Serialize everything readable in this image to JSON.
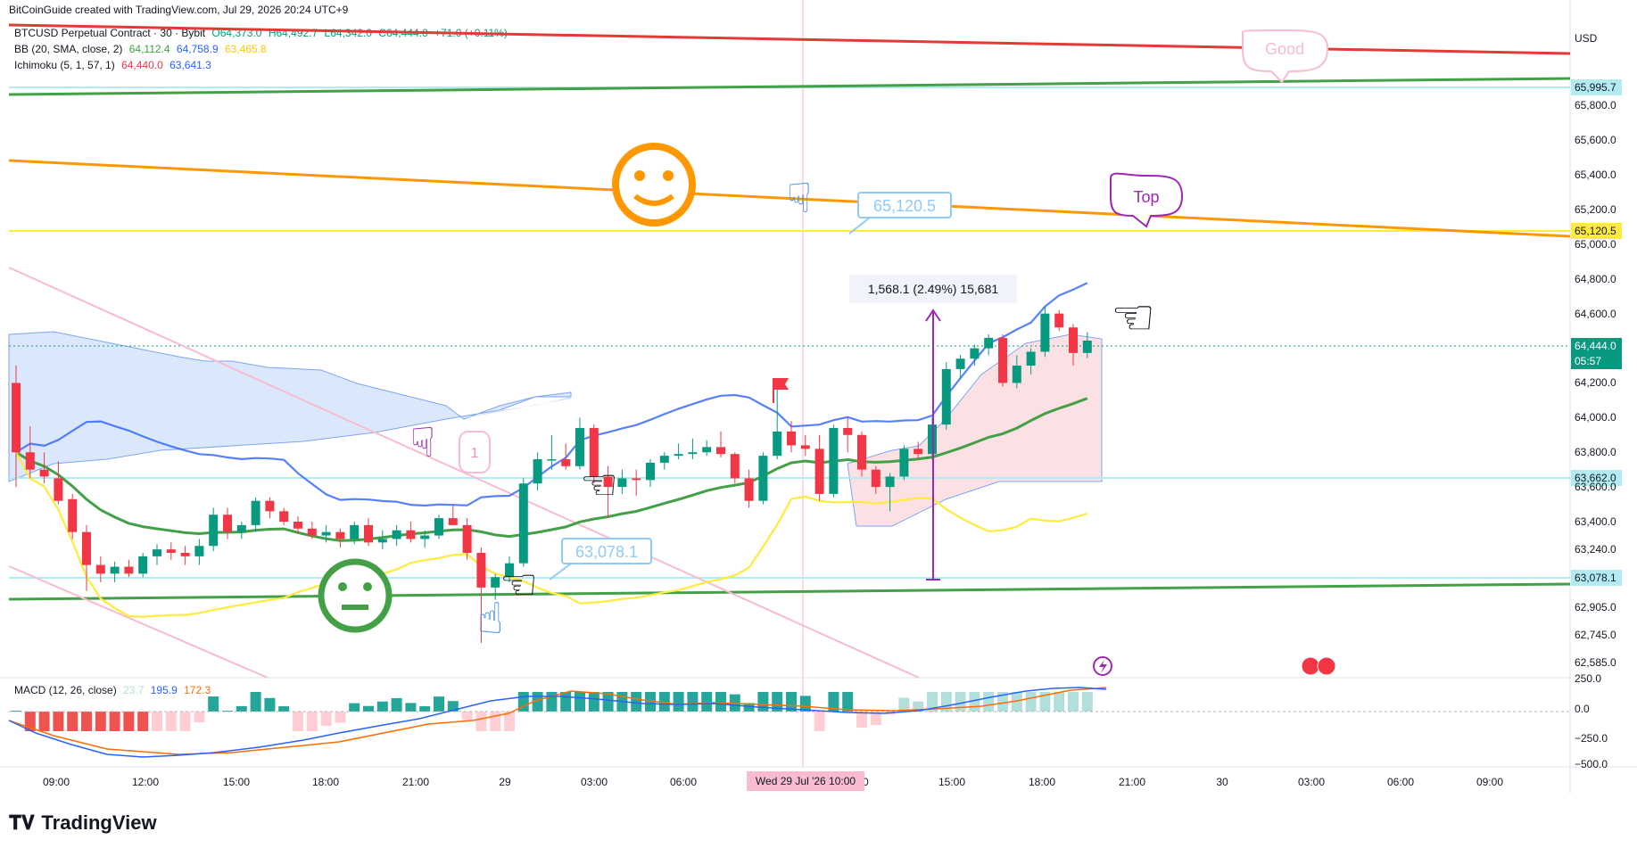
{
  "header": {
    "attribution": "BitCoinGuide created with TradingView.com, Jul 29, 2026 20:24 UTC+9"
  },
  "legend": {
    "symbol": "BTCUSD Perpetual Contract · 30 · Bybit",
    "open": "O64,373.0",
    "high": "H64,492.7",
    "low": "L64,342.0",
    "close": "C64,444.0",
    "change": "+71.0 (+0.11%)",
    "bb_label": "BB (20, SMA, close, 2)",
    "bb_basis": "64,112.4",
    "bb_upper": "64,758.9",
    "bb_lower": "63,465.8",
    "ichimoku_label": "Ichimoku (5, 1, 57, 1)",
    "ichi_a": "64,440.0",
    "ichi_b": "63,641.3",
    "macd_label": "MACD (12, 26, close)",
    "macd_hist": "23.7",
    "macd_line": "195.9",
    "macd_signal": "172.3"
  },
  "currency": "USD",
  "price_tags": {
    "t1": "65,995.7",
    "t2": "65,120.5",
    "last": "64,444.0",
    "countdown": "05:57",
    "t3": "63,662.0",
    "t4": "63,078.1"
  },
  "annotations": {
    "measure": "1,568.1 (2.49%) 15,681",
    "callout_high": "65,120.5",
    "callout_low": "63,078.1",
    "bubble_top": "Top",
    "bubble_good": "Good",
    "tag_one": "1",
    "crosshair_date": "Wed 29 Jul '26   10:00"
  },
  "footer": {
    "brand": "TradingView"
  },
  "colors": {
    "up": "#089981",
    "down": "#f23645",
    "bb": "#2962ff",
    "ma": "#43a047",
    "yellow": "#ffeb3b",
    "orange": "#ff9800",
    "red_line": "#e53935"
  },
  "chart_data": {
    "type": "candlestick",
    "symbol": "BTCUSD Perpetual Contract",
    "interval": "30",
    "exchange": "Bybit",
    "y_axis_ticks": [
      "65,800.0",
      "65,600.0",
      "65,400.0",
      "65,200.0",
      "65,000.0",
      "64,800.0",
      "64,600.0",
      "64,200.0",
      "64,000.0",
      "63,800.0",
      "63,600.0",
      "63,400.0",
      "63,240.0",
      "62,905.0",
      "62,745.0",
      "62,585.0"
    ],
    "macd_axis_ticks": [
      "250.0",
      "0.0",
      "−250.0",
      "−500.0"
    ],
    "x_axis_ticks": [
      "09:00",
      "12:00",
      "15:00",
      "18:00",
      "21:00",
      "29",
      "03:00",
      "06:00",
      "00",
      "15:00",
      "18:00",
      "21:00",
      "30",
      "03:00",
      "06:00",
      "09:00"
    ],
    "candles": [
      {
        "o": 64200,
        "h": 64300,
        "l": 63600,
        "c": 63800
      },
      {
        "o": 63800,
        "h": 63950,
        "l": 63650,
        "c": 63700
      },
      {
        "o": 63700,
        "h": 63800,
        "l": 63620,
        "c": 63660
      },
      {
        "o": 63650,
        "h": 63750,
        "l": 63500,
        "c": 63520
      },
      {
        "o": 63530,
        "h": 63560,
        "l": 63300,
        "c": 63340
      },
      {
        "o": 63340,
        "h": 63380,
        "l": 63000,
        "c": 63150
      },
      {
        "o": 63150,
        "h": 63200,
        "l": 63050,
        "c": 63100
      },
      {
        "o": 63100,
        "h": 63170,
        "l": 63050,
        "c": 63140
      },
      {
        "o": 63140,
        "h": 63180,
        "l": 63080,
        "c": 63100
      },
      {
        "o": 63100,
        "h": 63220,
        "l": 63080,
        "c": 63200
      },
      {
        "o": 63200,
        "h": 63270,
        "l": 63150,
        "c": 63240
      },
      {
        "o": 63240,
        "h": 63280,
        "l": 63180,
        "c": 63220
      },
      {
        "o": 63220,
        "h": 63260,
        "l": 63150,
        "c": 63200
      },
      {
        "o": 63200,
        "h": 63300,
        "l": 63150,
        "c": 63260
      },
      {
        "o": 63260,
        "h": 63480,
        "l": 63230,
        "c": 63440
      },
      {
        "o": 63440,
        "h": 63480,
        "l": 63300,
        "c": 63340
      },
      {
        "o": 63340,
        "h": 63400,
        "l": 63300,
        "c": 63380
      },
      {
        "o": 63380,
        "h": 63540,
        "l": 63340,
        "c": 63520
      },
      {
        "o": 63520,
        "h": 63540,
        "l": 63420,
        "c": 63460
      },
      {
        "o": 63460,
        "h": 63480,
        "l": 63380,
        "c": 63400
      },
      {
        "o": 63400,
        "h": 63430,
        "l": 63330,
        "c": 63360
      },
      {
        "o": 63360,
        "h": 63400,
        "l": 63300,
        "c": 63320
      },
      {
        "o": 63320,
        "h": 63380,
        "l": 63280,
        "c": 63340
      },
      {
        "o": 63340,
        "h": 63360,
        "l": 63250,
        "c": 63300
      },
      {
        "o": 63300,
        "h": 63400,
        "l": 63270,
        "c": 63380
      },
      {
        "o": 63380,
        "h": 63420,
        "l": 63260,
        "c": 63280
      },
      {
        "o": 63280,
        "h": 63350,
        "l": 63240,
        "c": 63300
      },
      {
        "o": 63300,
        "h": 63380,
        "l": 63260,
        "c": 63350
      },
      {
        "o": 63350,
        "h": 63400,
        "l": 63280,
        "c": 63300
      },
      {
        "o": 63300,
        "h": 63350,
        "l": 63250,
        "c": 63320
      },
      {
        "o": 63320,
        "h": 63440,
        "l": 63300,
        "c": 63420
      },
      {
        "o": 63420,
        "h": 63500,
        "l": 63380,
        "c": 63380
      },
      {
        "o": 63380,
        "h": 63420,
        "l": 63180,
        "c": 63220
      },
      {
        "o": 63220,
        "h": 63250,
        "l": 62700,
        "c": 63020
      },
      {
        "o": 63020,
        "h": 63100,
        "l": 62950,
        "c": 63080
      },
      {
        "o": 63080,
        "h": 63200,
        "l": 63050,
        "c": 63160
      },
      {
        "o": 63160,
        "h": 63650,
        "l": 63140,
        "c": 63620
      },
      {
        "o": 63620,
        "h": 63800,
        "l": 63580,
        "c": 63760
      },
      {
        "o": 63760,
        "h": 63900,
        "l": 63700,
        "c": 63760
      },
      {
        "o": 63760,
        "h": 63850,
        "l": 63700,
        "c": 63720
      },
      {
        "o": 63720,
        "h": 64000,
        "l": 63700,
        "c": 63940
      },
      {
        "o": 63940,
        "h": 63960,
        "l": 63620,
        "c": 63660
      },
      {
        "o": 63660,
        "h": 63720,
        "l": 63420,
        "c": 63600
      },
      {
        "o": 63600,
        "h": 63700,
        "l": 63560,
        "c": 63650
      },
      {
        "o": 63650,
        "h": 63700,
        "l": 63550,
        "c": 63640
      },
      {
        "o": 63640,
        "h": 63760,
        "l": 63600,
        "c": 63740
      },
      {
        "o": 63740,
        "h": 63800,
        "l": 63700,
        "c": 63780
      },
      {
        "o": 63780,
        "h": 63850,
        "l": 63760,
        "c": 63790
      },
      {
        "o": 63790,
        "h": 63880,
        "l": 63760,
        "c": 63800
      },
      {
        "o": 63800,
        "h": 63870,
        "l": 63780,
        "c": 63830
      },
      {
        "o": 63830,
        "h": 63920,
        "l": 63770,
        "c": 63790
      },
      {
        "o": 63790,
        "h": 63800,
        "l": 63620,
        "c": 63650
      },
      {
        "o": 63650,
        "h": 63700,
        "l": 63480,
        "c": 63520
      },
      {
        "o": 63520,
        "h": 63800,
        "l": 63500,
        "c": 63780
      },
      {
        "o": 63780,
        "h": 64200,
        "l": 63760,
        "c": 63920
      },
      {
        "o": 63920,
        "h": 63980,
        "l": 63800,
        "c": 63840
      },
      {
        "o": 63840,
        "h": 63900,
        "l": 63780,
        "c": 63820
      },
      {
        "o": 63820,
        "h": 63900,
        "l": 63520,
        "c": 63560
      },
      {
        "o": 63560,
        "h": 63960,
        "l": 63540,
        "c": 63940
      },
      {
        "o": 63940,
        "h": 64000,
        "l": 63800,
        "c": 63900
      },
      {
        "o": 63900,
        "h": 63920,
        "l": 63660,
        "c": 63700
      },
      {
        "o": 63700,
        "h": 63720,
        "l": 63560,
        "c": 63600
      },
      {
        "o": 63600,
        "h": 63680,
        "l": 63460,
        "c": 63660
      },
      {
        "o": 63660,
        "h": 63840,
        "l": 63640,
        "c": 63820
      },
      {
        "o": 63820,
        "h": 63860,
        "l": 63760,
        "c": 63790
      },
      {
        "o": 63790,
        "h": 64000,
        "l": 63760,
        "c": 63960
      },
      {
        "o": 63960,
        "h": 64320,
        "l": 63930,
        "c": 64280
      },
      {
        "o": 64280,
        "h": 64360,
        "l": 64220,
        "c": 64340
      },
      {
        "o": 64340,
        "h": 64420,
        "l": 64300,
        "c": 64400
      },
      {
        "o": 64400,
        "h": 64480,
        "l": 64360,
        "c": 64460
      },
      {
        "o": 64460,
        "h": 64480,
        "l": 64180,
        "c": 64200
      },
      {
        "o": 64200,
        "h": 64360,
        "l": 64170,
        "c": 64300
      },
      {
        "o": 64300,
        "h": 64400,
        "l": 64250,
        "c": 64380
      },
      {
        "o": 64380,
        "h": 64640,
        "l": 64350,
        "c": 64600
      },
      {
        "o": 64600,
        "h": 64620,
        "l": 64500,
        "c": 64520
      },
      {
        "o": 64520,
        "h": 64540,
        "l": 64300,
        "c": 64373
      },
      {
        "o": 64373,
        "h": 64492.7,
        "l": 64342,
        "c": 64444
      }
    ]
  }
}
